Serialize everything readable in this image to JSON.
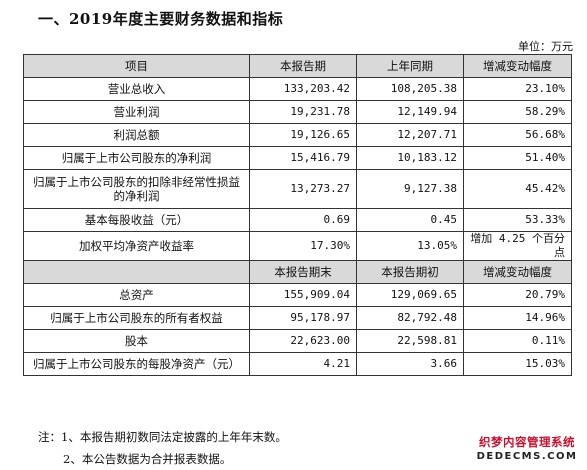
{
  "title": "一、2019年度主要财务数据和指标",
  "unit": "单位：万元",
  "table": {
    "header1": [
      "项目",
      "本报告期",
      "上年同期",
      "增减变动幅度"
    ],
    "rows1": [
      {
        "item": "营业总收入",
        "cur": "133,203.42",
        "prev": "108,205.38",
        "chg": "23.10%"
      },
      {
        "item": "营业利润",
        "cur": "19,231.78",
        "prev": "12,149.94",
        "chg": "58.29%"
      },
      {
        "item": "利润总额",
        "cur": "19,126.65",
        "prev": "12,207.71",
        "chg": "56.68%"
      },
      {
        "item": "归属于上市公司股东的净利润",
        "cur": "15,416.79",
        "prev": "10,183.12",
        "chg": "51.40%"
      },
      {
        "item": "归属于上市公司股东的扣除非经常性损益的净利润",
        "cur": "13,273.27",
        "prev": "9,127.38",
        "chg": "45.42%"
      },
      {
        "item": "基本每股收益（元）",
        "cur": "0.69",
        "prev": "0.45",
        "chg": "53.33%"
      },
      {
        "item": "加权平均净资产收益率",
        "cur": "17.30%",
        "prev": "13.05%",
        "chg": "增加 4.25 个百分点"
      }
    ],
    "header2": [
      "本报告期末",
      "本报告期初",
      "增减变动幅度"
    ],
    "rows2": [
      {
        "item": "总资产",
        "cur": "155,909.04",
        "prev": "129,069.65",
        "chg": "20.79%"
      },
      {
        "item": "归属于上市公司股东的所有者权益",
        "cur": "95,178.97",
        "prev": "82,792.48",
        "chg": "14.96%"
      },
      {
        "item": "股本",
        "cur": "22,623.00",
        "prev": "22,598.81",
        "chg": "0.11%"
      },
      {
        "item": "归属于上市公司股东的每股净资产（元）",
        "cur": "4.21",
        "prev": "3.66",
        "chg": "15.03%"
      }
    ]
  },
  "notes": [
    "注：1、本报告期初数同法定披露的上年年末数。",
    "2、本公告数据为合并报表数据。"
  ],
  "watermark": {
    "line1": "织梦内容管理系统",
    "line2": "DEDECMS.COM"
  }
}
